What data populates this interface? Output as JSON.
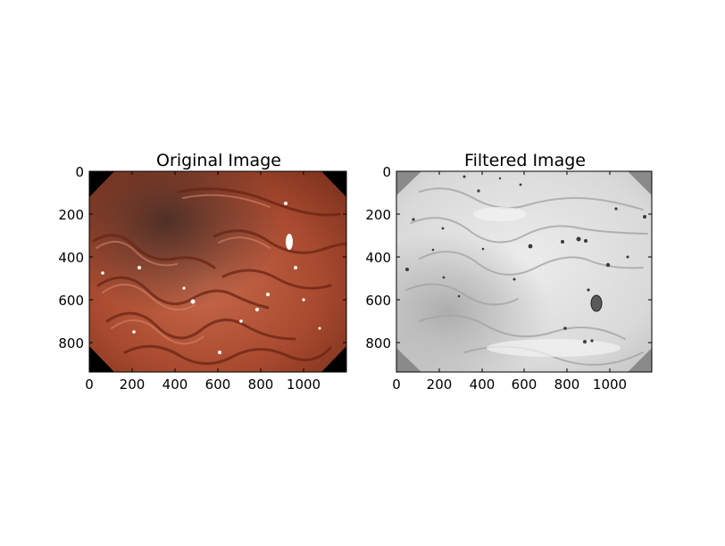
{
  "chart_data": [
    {
      "type": "image",
      "title": "Original Image",
      "content": "endoscopic photo of stomach lining (reddish-orange mucosa with folds)",
      "xlim": [
        0,
        1200
      ],
      "ylim": [
        950,
        0
      ],
      "xticks": [
        0,
        200,
        400,
        600,
        800,
        1000
      ],
      "yticks": [
        0,
        200,
        400,
        600,
        800
      ]
    },
    {
      "type": "image",
      "title": "Filtered Image",
      "content": "grayscale filtered version of the same endoscopic photo",
      "xlim": [
        0,
        1200
      ],
      "ylim": [
        950,
        0
      ],
      "xticks": [
        0,
        200,
        400,
        600,
        800,
        1000
      ],
      "yticks": [
        0,
        200,
        400,
        600,
        800
      ]
    }
  ],
  "colors": {
    "tissue_dark": "#6e2a18",
    "tissue_mid": "#a9492e",
    "tissue_light": "#c96a4c",
    "filtered_bg": "#8a8a8a",
    "filtered_light": "#e6e6e6",
    "filtered_mid": "#c4c4c4"
  }
}
